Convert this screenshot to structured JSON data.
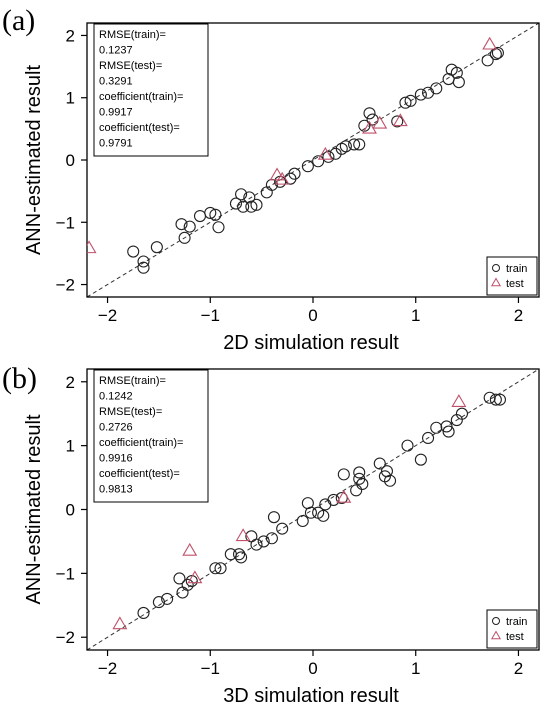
{
  "chart_data": [
    {
      "type": "scatter",
      "panel_label": "(a)",
      "xlabel": "2D simulation result",
      "ylabel": "ANN-estimated result",
      "xlim": [
        -2.2,
        2.2
      ],
      "ylim": [
        -2.2,
        2.2
      ],
      "xticks": [
        -2,
        -1,
        0,
        1,
        2
      ],
      "yticks": [
        -2,
        -1,
        0,
        1,
        2
      ],
      "xtick_labels": [
        "−2",
        "−1",
        "0",
        "1",
        "2"
      ],
      "ytick_labels": [
        "−2",
        "−1",
        "0",
        "1",
        "2"
      ],
      "grid": false,
      "reference_line": "y = x (dashed)",
      "stats_box": [
        "RMSE(train)=",
        "0.1237",
        "RMSE(test)=",
        "0.3291",
        "coefficient(train)=",
        "0.9917",
        "coefficient(test)=",
        "0.9791"
      ],
      "legend_position": "bottom-right",
      "series": [
        {
          "name": "train",
          "marker": "circle",
          "color": "#222222",
          "points": [
            [
              -1.75,
              -1.47
            ],
            [
              -1.65,
              -1.63
            ],
            [
              -1.65,
              -1.73
            ],
            [
              -1.52,
              -1.4
            ],
            [
              -1.28,
              -1.03
            ],
            [
              -1.25,
              -1.25
            ],
            [
              -1.2,
              -1.07
            ],
            [
              -1.1,
              -0.9
            ],
            [
              -1.0,
              -0.85
            ],
            [
              -0.95,
              -0.88
            ],
            [
              -0.92,
              -1.08
            ],
            [
              -0.75,
              -0.7
            ],
            [
              -0.7,
              -0.55
            ],
            [
              -0.68,
              -0.75
            ],
            [
              -0.62,
              -0.6
            ],
            [
              -0.6,
              -0.75
            ],
            [
              -0.55,
              -0.72
            ],
            [
              -0.45,
              -0.52
            ],
            [
              -0.4,
              -0.4
            ],
            [
              -0.32,
              -0.35
            ],
            [
              -0.22,
              -0.3
            ],
            [
              -0.18,
              -0.22
            ],
            [
              -0.05,
              -0.1
            ],
            [
              0.05,
              -0.02
            ],
            [
              0.15,
              0.05
            ],
            [
              0.22,
              0.1
            ],
            [
              0.28,
              0.18
            ],
            [
              0.32,
              0.22
            ],
            [
              0.4,
              0.25
            ],
            [
              0.45,
              0.25
            ],
            [
              0.5,
              0.55
            ],
            [
              0.55,
              0.75
            ],
            [
              0.58,
              0.65
            ],
            [
              0.82,
              0.62
            ],
            [
              0.9,
              0.92
            ],
            [
              0.95,
              0.95
            ],
            [
              1.05,
              1.05
            ],
            [
              1.12,
              1.08
            ],
            [
              1.2,
              1.15
            ],
            [
              1.32,
              1.3
            ],
            [
              1.35,
              1.45
            ],
            [
              1.4,
              1.4
            ],
            [
              1.42,
              1.25
            ],
            [
              1.7,
              1.6
            ],
            [
              1.78,
              1.7
            ],
            [
              1.8,
              1.72
            ]
          ]
        },
        {
          "name": "test",
          "marker": "triangle",
          "color": "#c0506a",
          "points": [
            [
              -2.18,
              -1.42
            ],
            [
              -0.35,
              -0.25
            ],
            [
              -0.3,
              -0.32
            ],
            [
              0.12,
              0.08
            ],
            [
              0.55,
              0.5
            ],
            [
              0.65,
              0.58
            ],
            [
              0.85,
              0.62
            ],
            [
              1.72,
              1.85
            ]
          ]
        }
      ]
    },
    {
      "type": "scatter",
      "panel_label": "(b)",
      "xlabel": "3D simulation result",
      "ylabel": "ANN-estimated result",
      "xlim": [
        -2.2,
        2.2
      ],
      "ylim": [
        -2.2,
        2.2
      ],
      "xticks": [
        -2,
        -1,
        0,
        1,
        2
      ],
      "yticks": [
        -2,
        -1,
        0,
        1,
        2
      ],
      "xtick_labels": [
        "−2",
        "−1",
        "0",
        "1",
        "2"
      ],
      "ytick_labels": [
        "−2",
        "−1",
        "0",
        "1",
        "2"
      ],
      "grid": false,
      "reference_line": "y = x (dashed)",
      "stats_box": [
        "RMSE(train)=",
        "0.1242",
        "RMSE(test)=",
        "0.2726",
        "coefficient(train)=",
        "0.9916",
        "coefficient(test)=",
        "0.9813"
      ],
      "legend_position": "bottom-right",
      "series": [
        {
          "name": "train",
          "marker": "circle",
          "color": "#222222",
          "points": [
            [
              -1.65,
              -1.62
            ],
            [
              -1.5,
              -1.45
            ],
            [
              -1.42,
              -1.4
            ],
            [
              -1.3,
              -1.08
            ],
            [
              -1.27,
              -1.3
            ],
            [
              -1.22,
              -1.18
            ],
            [
              -1.18,
              -1.12
            ],
            [
              -0.95,
              -0.92
            ],
            [
              -0.9,
              -0.92
            ],
            [
              -0.8,
              -0.7
            ],
            [
              -0.72,
              -0.7
            ],
            [
              -0.7,
              -0.75
            ],
            [
              -0.6,
              -0.42
            ],
            [
              -0.55,
              -0.55
            ],
            [
              -0.48,
              -0.5
            ],
            [
              -0.4,
              -0.45
            ],
            [
              -0.38,
              -0.12
            ],
            [
              -0.3,
              -0.3
            ],
            [
              -0.1,
              -0.18
            ],
            [
              -0.05,
              0.1
            ],
            [
              -0.02,
              -0.05
            ],
            [
              0.05,
              -0.05
            ],
            [
              0.1,
              -0.1
            ],
            [
              0.12,
              0.08
            ],
            [
              0.2,
              0.15
            ],
            [
              0.28,
              0.18
            ],
            [
              0.3,
              0.55
            ],
            [
              0.42,
              0.3
            ],
            [
              0.45,
              0.48
            ],
            [
              0.45,
              0.58
            ],
            [
              0.48,
              0.4
            ],
            [
              0.65,
              0.72
            ],
            [
              0.7,
              0.52
            ],
            [
              0.72,
              0.6
            ],
            [
              0.75,
              0.45
            ],
            [
              0.92,
              1.0
            ],
            [
              1.05,
              0.78
            ],
            [
              1.12,
              1.12
            ],
            [
              1.2,
              1.28
            ],
            [
              1.3,
              1.3
            ],
            [
              1.32,
              1.22
            ],
            [
              1.4,
              1.4
            ],
            [
              1.45,
              1.5
            ],
            [
              1.72,
              1.75
            ],
            [
              1.78,
              1.72
            ],
            [
              1.82,
              1.72
            ]
          ]
        },
        {
          "name": "test",
          "marker": "triangle",
          "color": "#c0506a",
          "points": [
            [
              -1.88,
              -1.8
            ],
            [
              -1.2,
              -0.65
            ],
            [
              -1.15,
              -1.08
            ],
            [
              -0.68,
              -0.42
            ],
            [
              0.3,
              0.18
            ],
            [
              1.42,
              1.68
            ]
          ]
        }
      ]
    }
  ]
}
